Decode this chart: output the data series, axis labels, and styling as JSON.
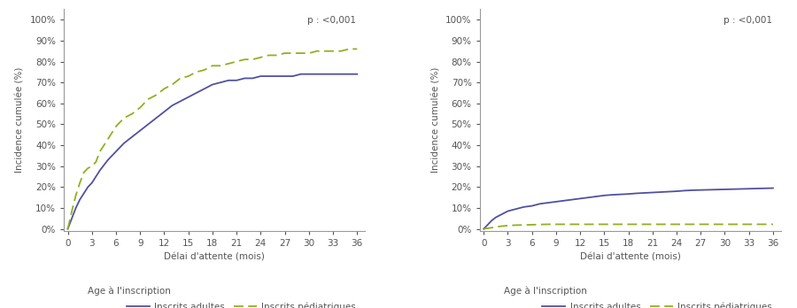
{
  "left_adults_x": [
    0,
    0.5,
    1,
    1.5,
    2,
    2.5,
    3,
    4,
    5,
    6,
    7,
    8,
    9,
    10,
    11,
    12,
    13,
    14,
    15,
    16,
    17,
    18,
    19,
    20,
    21,
    22,
    23,
    24,
    25,
    26,
    27,
    28,
    29,
    30,
    31,
    32,
    33,
    34,
    35,
    36
  ],
  "left_adults_y": [
    0,
    0.05,
    0.1,
    0.14,
    0.17,
    0.2,
    0.22,
    0.28,
    0.33,
    0.37,
    0.41,
    0.44,
    0.47,
    0.5,
    0.53,
    0.56,
    0.59,
    0.61,
    0.63,
    0.65,
    0.67,
    0.69,
    0.7,
    0.71,
    0.71,
    0.72,
    0.72,
    0.73,
    0.73,
    0.73,
    0.73,
    0.73,
    0.74,
    0.74,
    0.74,
    0.74,
    0.74,
    0.74,
    0.74,
    0.74
  ],
  "left_peds_x": [
    0,
    0.3,
    0.6,
    1,
    1.5,
    2,
    2.5,
    3,
    3.5,
    4,
    5,
    6,
    7,
    8,
    9,
    10,
    11,
    12,
    13,
    14,
    15,
    16,
    17,
    18,
    19,
    20,
    21,
    22,
    23,
    24,
    25,
    26,
    27,
    28,
    29,
    30,
    31,
    32,
    33,
    34,
    35,
    36
  ],
  "left_peds_y": [
    0,
    0.05,
    0.1,
    0.16,
    0.22,
    0.27,
    0.29,
    0.3,
    0.32,
    0.37,
    0.43,
    0.49,
    0.53,
    0.55,
    0.58,
    0.62,
    0.64,
    0.67,
    0.69,
    0.72,
    0.73,
    0.75,
    0.76,
    0.78,
    0.78,
    0.79,
    0.8,
    0.81,
    0.81,
    0.82,
    0.83,
    0.83,
    0.84,
    0.84,
    0.84,
    0.84,
    0.85,
    0.85,
    0.85,
    0.85,
    0.86,
    0.86
  ],
  "right_adults_x": [
    0,
    0.5,
    1,
    1.5,
    2,
    2.5,
    3,
    4,
    5,
    6,
    7,
    8,
    9,
    10,
    11,
    12,
    13,
    14,
    15,
    16,
    17,
    18,
    19,
    20,
    21,
    22,
    23,
    24,
    25,
    26,
    27,
    28,
    29,
    30,
    31,
    32,
    33,
    34,
    35,
    36
  ],
  "right_adults_y": [
    0,
    0.02,
    0.04,
    0.055,
    0.065,
    0.075,
    0.085,
    0.095,
    0.105,
    0.11,
    0.12,
    0.125,
    0.13,
    0.135,
    0.14,
    0.145,
    0.15,
    0.155,
    0.16,
    0.163,
    0.165,
    0.167,
    0.17,
    0.172,
    0.174,
    0.176,
    0.178,
    0.18,
    0.183,
    0.185,
    0.186,
    0.187,
    0.188,
    0.189,
    0.19,
    0.191,
    0.192,
    0.193,
    0.194,
    0.195
  ],
  "right_peds_x": [
    0,
    0.5,
    1,
    1.5,
    2,
    3,
    4,
    5,
    6,
    7,
    8,
    9,
    10,
    11,
    12,
    13,
    14,
    15,
    16,
    17,
    18,
    19,
    20,
    21,
    22,
    23,
    24,
    25,
    26,
    27,
    28,
    29,
    30,
    31,
    32,
    33,
    34,
    35,
    36
  ],
  "right_peds_y": [
    0,
    0.003,
    0.006,
    0.009,
    0.012,
    0.016,
    0.018,
    0.019,
    0.02,
    0.021,
    0.022,
    0.022,
    0.022,
    0.022,
    0.022,
    0.022,
    0.022,
    0.022,
    0.022,
    0.022,
    0.022,
    0.022,
    0.022,
    0.022,
    0.022,
    0.022,
    0.022,
    0.022,
    0.022,
    0.022,
    0.022,
    0.022,
    0.022,
    0.022,
    0.022,
    0.022,
    0.022,
    0.022,
    0.022
  ],
  "adults_color": "#5050a0",
  "peds_color": "#90b020",
  "xlabel": "Délai d'attente (mois)",
  "ylabel": "Incidence cumulée (%)",
  "pvalue": "p : <0,001",
  "legend_prefix": "Age à l'inscription",
  "legend_adults": "Inscrits adultes",
  "legend_peds": "Inscrits pédiatriques",
  "xticks": [
    0,
    3,
    6,
    9,
    12,
    15,
    18,
    21,
    24,
    27,
    30,
    33,
    36
  ],
  "yticks": [
    0,
    0.1,
    0.2,
    0.3,
    0.4,
    0.5,
    0.6,
    0.7,
    0.8,
    0.9,
    1.0
  ],
  "xlim": [
    -0.5,
    37
  ],
  "ylim": [
    -0.01,
    1.05
  ],
  "background_color": "#ffffff",
  "plot_bg_color": "#ffffff",
  "spine_color": "#999999",
  "tick_color": "#555555",
  "text_color": "#555555",
  "font_size": 7.5,
  "line_width": 1.3
}
